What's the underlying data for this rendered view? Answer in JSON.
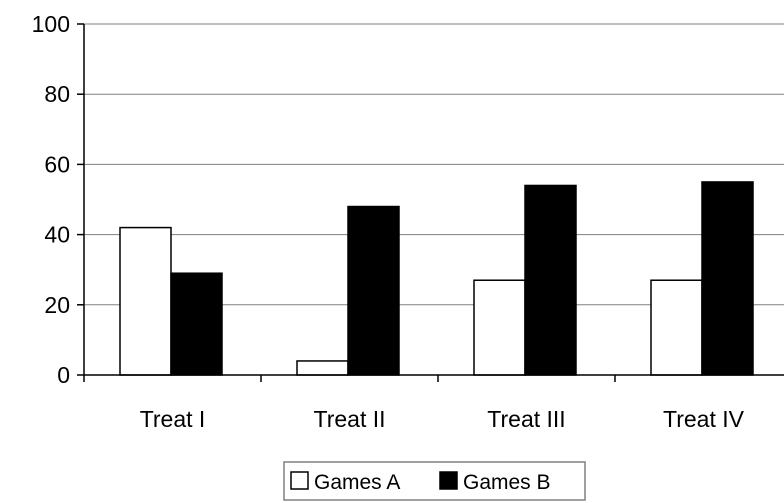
{
  "chart_data": {
    "type": "bar",
    "categories": [
      "Treat I",
      "Treat II",
      "Treat III",
      "Treat IV"
    ],
    "series": [
      {
        "name": "Games A",
        "values": [
          42,
          4,
          27,
          27
        ],
        "fill": "#ffffff"
      },
      {
        "name": "Games B",
        "values": [
          29,
          48,
          54,
          55
        ],
        "fill": "#000000"
      }
    ],
    "title": "",
    "xlabel": "",
    "ylabel": "",
    "ylim": [
      0,
      100
    ],
    "yticks": [
      0,
      20,
      40,
      60,
      80,
      100
    ],
    "grid": true,
    "legend_position": "bottom"
  }
}
